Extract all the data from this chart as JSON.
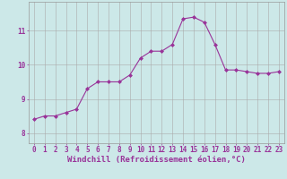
{
  "x": [
    0,
    1,
    2,
    3,
    4,
    5,
    6,
    7,
    8,
    9,
    10,
    11,
    12,
    13,
    14,
    15,
    16,
    17,
    18,
    19,
    20,
    21,
    22,
    23
  ],
  "y": [
    8.4,
    8.5,
    8.5,
    8.6,
    8.7,
    9.3,
    9.5,
    9.5,
    9.5,
    9.7,
    10.2,
    10.4,
    10.4,
    10.6,
    11.35,
    11.4,
    11.25,
    10.6,
    9.85,
    9.85,
    9.8,
    9.75,
    9.75,
    9.8
  ],
  "line_color": "#993399",
  "marker": "D",
  "marker_size": 2.0,
  "bg_color": "#cce8e8",
  "grid_color": "#aaaaaa",
  "xlabel": "Windchill (Refroidissement éolien,°C)",
  "xlabel_color": "#993399",
  "tick_color": "#993399",
  "ylim": [
    7.7,
    11.85
  ],
  "xlim": [
    -0.5,
    23.5
  ],
  "yticks": [
    8,
    9,
    10,
    11
  ],
  "xticks": [
    0,
    1,
    2,
    3,
    4,
    5,
    6,
    7,
    8,
    9,
    10,
    11,
    12,
    13,
    14,
    15,
    16,
    17,
    18,
    19,
    20,
    21,
    22,
    23
  ],
  "tick_fontsize": 5.5,
  "xlabel_fontsize": 6.5
}
